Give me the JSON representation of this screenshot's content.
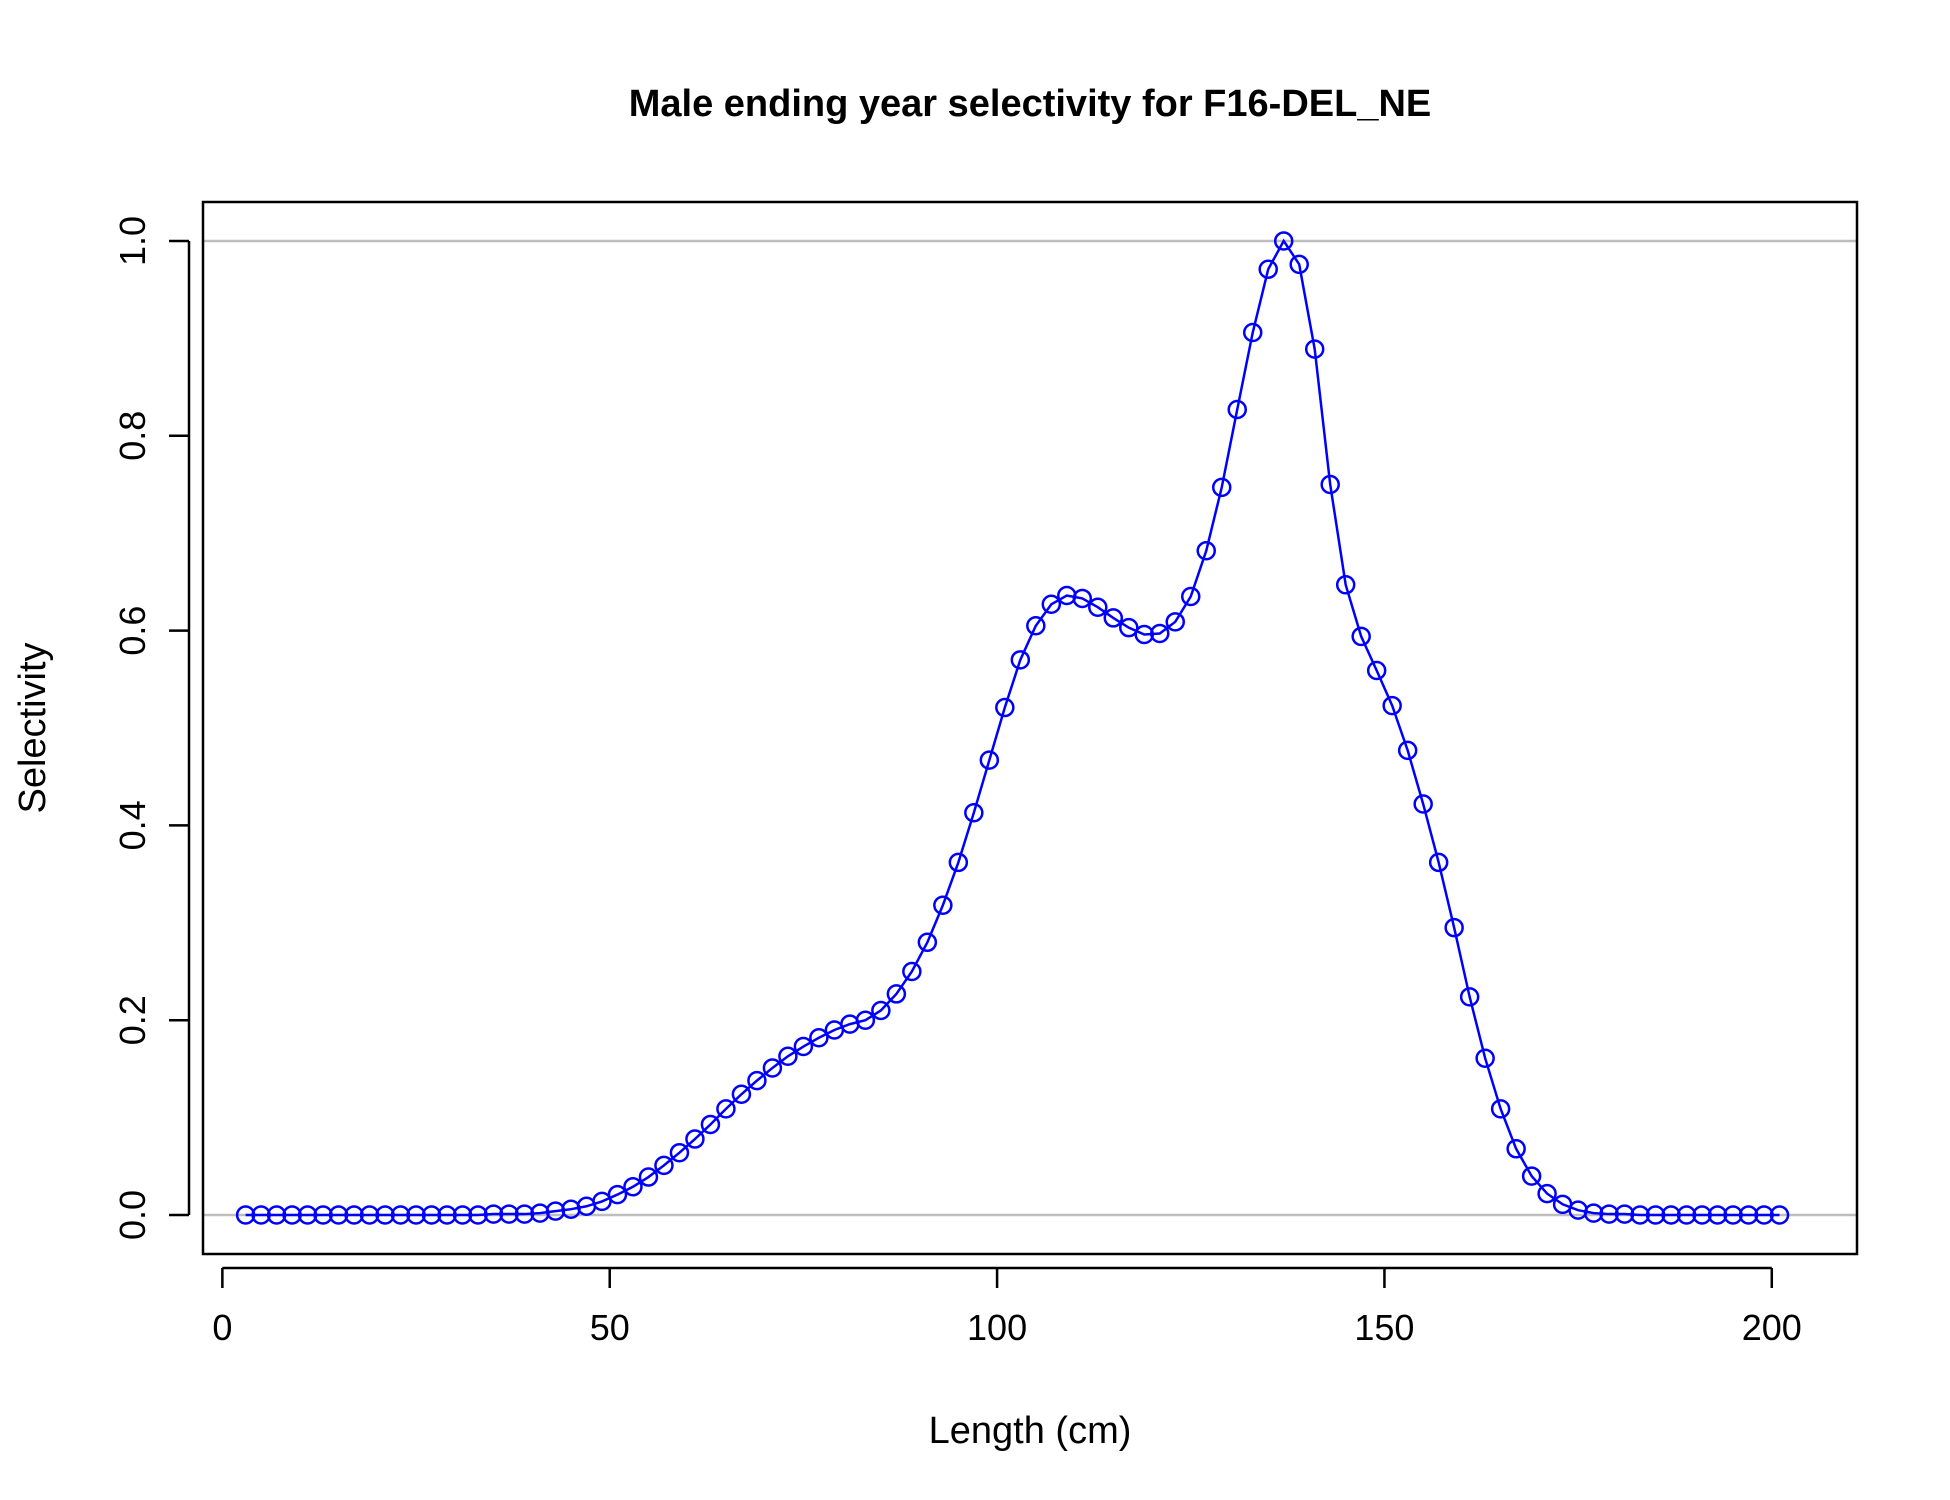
{
  "chart_data": {
    "type": "line",
    "title": "Male ending year selectivity for F16-DEL_NE",
    "xlabel": "Length (cm)",
    "ylabel": "Selectivity",
    "xlim": [
      -2.5,
      211
    ],
    "ylim": [
      -0.04,
      1.04
    ],
    "xticks": [
      {
        "value": 0,
        "label": "0"
      },
      {
        "value": 50,
        "label": "50"
      },
      {
        "value": 100,
        "label": "100"
      },
      {
        "value": 150,
        "label": "150"
      },
      {
        "value": 200,
        "label": "200"
      }
    ],
    "yticks": [
      {
        "value": 0.0,
        "label": "0.0"
      },
      {
        "value": 0.2,
        "label": "0.2"
      },
      {
        "value": 0.4,
        "label": "0.4"
      },
      {
        "value": 0.6,
        "label": "0.6"
      },
      {
        "value": 0.8,
        "label": "0.8"
      },
      {
        "value": 1.0,
        "label": "1.0"
      }
    ],
    "reference_lines": [
      0,
      1
    ],
    "grid": false,
    "colors": {
      "series": "#0000ff",
      "reference": "#bebebe",
      "axes": "#000000"
    },
    "series": [
      {
        "marker": "open-circle",
        "x": [
          3,
          5,
          7,
          9,
          11,
          13,
          15,
          17,
          19,
          21,
          23,
          25,
          27,
          29,
          31,
          33,
          35,
          37,
          39,
          41,
          43,
          45,
          47,
          49,
          51,
          53,
          55,
          57,
          59,
          61,
          63,
          65,
          67,
          69,
          71,
          73,
          75,
          77,
          79,
          81,
          83,
          85,
          87,
          89,
          91,
          93,
          95,
          97,
          99,
          101,
          103,
          105,
          107,
          109,
          111,
          113,
          115,
          117,
          119,
          121,
          123,
          125,
          127,
          129,
          131,
          133,
          135,
          137,
          139,
          141,
          143,
          145,
          147,
          149,
          151,
          153,
          155,
          157,
          159,
          161,
          163,
          165,
          167,
          169,
          171,
          173,
          175,
          177,
          179,
          181,
          183,
          185,
          187,
          189,
          191,
          193,
          195,
          197,
          199,
          201
        ],
        "y": [
          0,
          0,
          0,
          0,
          0,
          0,
          0,
          0,
          0,
          0,
          0,
          0,
          0,
          0,
          0,
          0,
          0.001,
          0.001,
          0.001,
          0.002,
          0.004,
          0.006,
          0.009,
          0.014,
          0.021,
          0.029,
          0.039,
          0.051,
          0.064,
          0.078,
          0.093,
          0.109,
          0.124,
          0.138,
          0.151,
          0.163,
          0.173,
          0.182,
          0.19,
          0.196,
          0.2,
          0.21,
          0.227,
          0.25,
          0.28,
          0.318,
          0.362,
          0.413,
          0.467,
          0.521,
          0.57,
          0.605,
          0.627,
          0.636,
          0.633,
          0.624,
          0.613,
          0.603,
          0.596,
          0.597,
          0.609,
          0.635,
          0.682,
          0.747,
          0.827,
          0.906,
          0.971,
          1.0,
          0.976,
          0.889,
          0.75,
          0.647,
          0.594,
          0.559,
          0.523,
          0.477,
          0.422,
          0.362,
          0.295,
          0.224,
          0.161,
          0.109,
          0.068,
          0.04,
          0.022,
          0.011,
          0.005,
          0.002,
          0.001,
          0.001,
          0,
          0,
          0,
          0,
          0,
          0,
          0,
          0,
          0,
          0
        ]
      }
    ]
  }
}
